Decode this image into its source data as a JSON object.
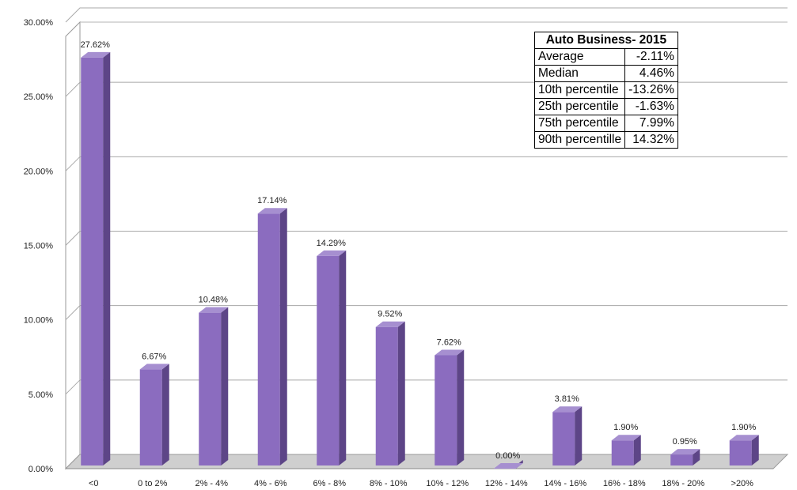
{
  "chart_data": {
    "type": "bar",
    "categories": [
      "<0",
      "0 to 2%",
      "2% - 4%",
      "4% - 6%",
      "6% - 8%",
      "8% - 10%",
      "10% - 12%",
      "12% - 14%",
      "14% - 16%",
      "16% - 18%",
      "18% - 20%",
      ">20%"
    ],
    "values": [
      27.62,
      6.67,
      10.48,
      17.14,
      14.29,
      9.52,
      7.62,
      0.0,
      3.81,
      1.9,
      0.95,
      1.9
    ],
    "data_labels": [
      "27.62%",
      "6.67%",
      "10.48%",
      "17.14%",
      "14.29%",
      "9.52%",
      "7.62%",
      "0.00%",
      "3.81%",
      "1.90%",
      "0.95%",
      "1.90%"
    ],
    "yticks": [
      "0.00%",
      "5.00%",
      "10.00%",
      "15.00%",
      "20.00%",
      "25.00%",
      "30.00%"
    ],
    "ylim": [
      0,
      30
    ],
    "grid": true,
    "style": "3d-column",
    "bar_color": "#8b6cbf",
    "bar_side_color": "#5d4587",
    "bar_top_color": "#a68fd0",
    "title": "",
    "xlabel": "",
    "ylabel": ""
  },
  "stats_table": {
    "title": "Auto Business- 2015",
    "rows": [
      {
        "label": "Average",
        "value": "-2.11%"
      },
      {
        "label": "Median",
        "value": "4.46%"
      },
      {
        "label": "10th percentile",
        "value": "-13.26%"
      },
      {
        "label": "25th percentile",
        "value": "-1.63%"
      },
      {
        "label": "75th percentile",
        "value": "7.99%"
      },
      {
        "label": "90th percentille",
        "value": "14.32%"
      }
    ]
  }
}
